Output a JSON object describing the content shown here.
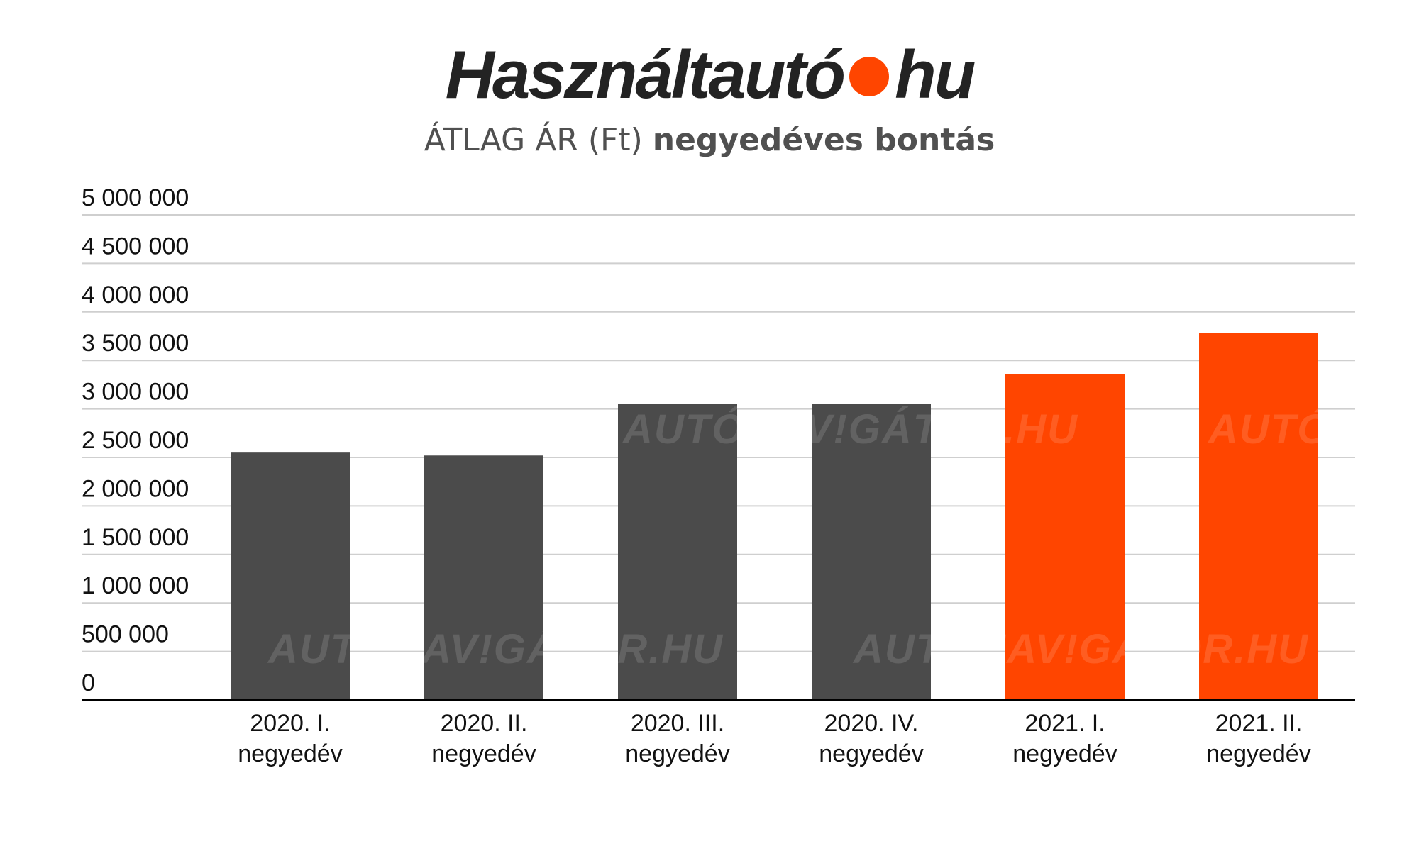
{
  "logo": {
    "name_part": "Használtautó",
    "suffix_part": "hu"
  },
  "subtitle": {
    "light": "ÁTLAG ÁR (Ft)",
    "bold": "negyedéves bontás"
  },
  "watermark_text": "AUTÓNAV!GÁTOR.HU",
  "colors": {
    "dark_bar": "#4b4b4b",
    "accent": "#ff4500",
    "grid": "#cfcfcf",
    "axis": "#000000",
    "logo_text": "#232323"
  },
  "chart_data": {
    "type": "bar",
    "categories": [
      [
        "2020. I.",
        "negyedév"
      ],
      [
        "2020. II.",
        "negyedév"
      ],
      [
        "2020. III.",
        "negyedév"
      ],
      [
        "2020. IV.",
        "negyedév"
      ],
      [
        "2021. I.",
        "negyedév"
      ],
      [
        "2021. II.",
        "negyedév"
      ]
    ],
    "values": [
      2550000,
      2520000,
      3050000,
      3050000,
      3360000,
      3780000
    ],
    "bar_colors": [
      "#4b4b4b",
      "#4b4b4b",
      "#4b4b4b",
      "#4b4b4b",
      "#ff4500",
      "#ff4500"
    ],
    "ylim": [
      0,
      5000000
    ],
    "yticks": [
      0,
      500000,
      1000000,
      1500000,
      2000000,
      2500000,
      3000000,
      3500000,
      4000000,
      4500000,
      5000000
    ],
    "ytick_labels": [
      "0",
      "500 000",
      "1 000 000",
      "1 500 000",
      "2 000 000",
      "2 500 000",
      "3 000 000",
      "3 500 000",
      "4 000 000",
      "4 500 000",
      "5 000 000"
    ],
    "grid": true,
    "legend": false
  }
}
